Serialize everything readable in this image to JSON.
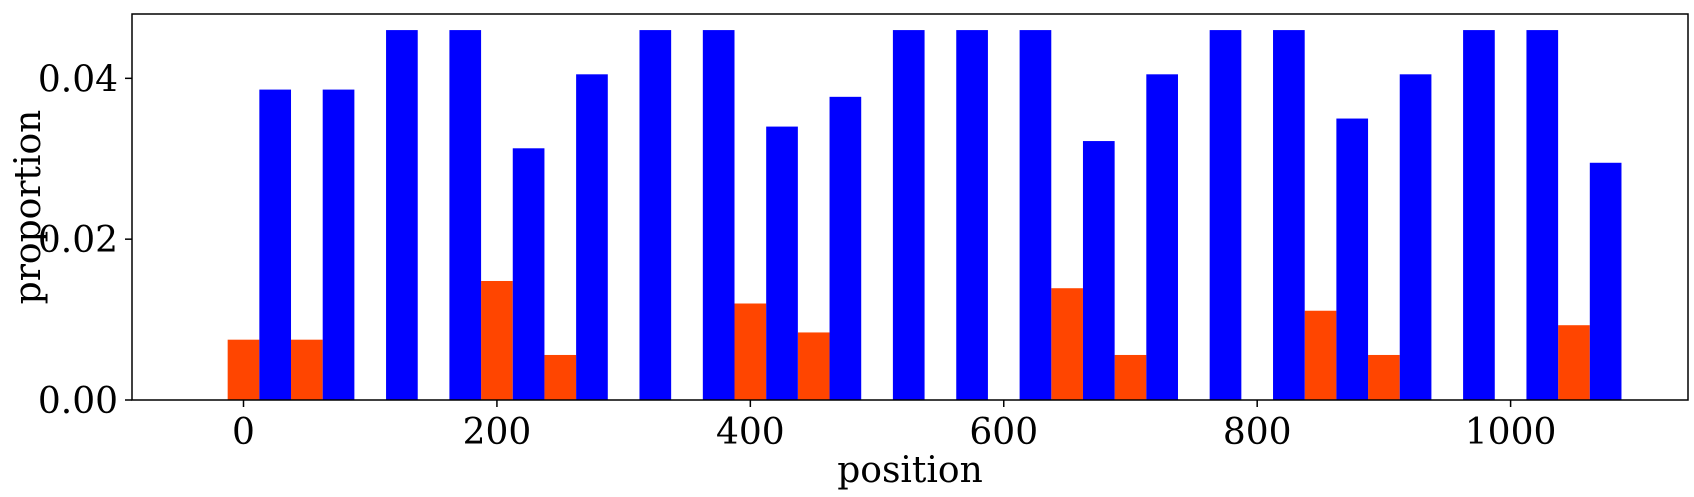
{
  "chart_data": {
    "type": "bar",
    "title": "",
    "xlabel": "position",
    "ylabel": "proportion",
    "xlim": [
      -88,
      1140
    ],
    "ylim": [
      0,
      0.048
    ],
    "xticks": [
      0,
      200,
      400,
      600,
      800,
      1000
    ],
    "xtick_labels": [
      "0",
      "200",
      "400",
      "600",
      "800",
      "1000"
    ],
    "yticks": [
      0.0,
      0.02,
      0.04
    ],
    "ytick_labels": [
      "0.00",
      "0.02",
      "0.04"
    ],
    "bar_width": 25,
    "grid": false,
    "legend": "none",
    "series": [
      {
        "color": "#ff4500",
        "points": [
          {
            "x": 0,
            "y": 0.0075
          },
          {
            "x": 50,
            "y": 0.0075
          },
          {
            "x": 200,
            "y": 0.0148
          },
          {
            "x": 250,
            "y": 0.0056
          },
          {
            "x": 400,
            "y": 0.012
          },
          {
            "x": 450,
            "y": 0.0084
          },
          {
            "x": 650,
            "y": 0.0139
          },
          {
            "x": 700,
            "y": 0.0056
          },
          {
            "x": 850,
            "y": 0.0111
          },
          {
            "x": 900,
            "y": 0.0056
          },
          {
            "x": 1050,
            "y": 0.0093
          }
        ]
      },
      {
        "color": "#0000ff",
        "points": [
          {
            "x": 25,
            "y": 0.0386
          },
          {
            "x": 75,
            "y": 0.0386
          },
          {
            "x": 125,
            "y": 0.046
          },
          {
            "x": 175,
            "y": 0.046
          },
          {
            "x": 225,
            "y": 0.0313
          },
          {
            "x": 275,
            "y": 0.0405
          },
          {
            "x": 325,
            "y": 0.046
          },
          {
            "x": 375,
            "y": 0.046
          },
          {
            "x": 425,
            "y": 0.034
          },
          {
            "x": 475,
            "y": 0.0377
          },
          {
            "x": 525,
            "y": 0.046
          },
          {
            "x": 575,
            "y": 0.046
          },
          {
            "x": 625,
            "y": 0.046
          },
          {
            "x": 675,
            "y": 0.0322
          },
          {
            "x": 725,
            "y": 0.0405
          },
          {
            "x": 775,
            "y": 0.046
          },
          {
            "x": 825,
            "y": 0.046
          },
          {
            "x": 875,
            "y": 0.035
          },
          {
            "x": 925,
            "y": 0.0405
          },
          {
            "x": 975,
            "y": 0.046
          },
          {
            "x": 1025,
            "y": 0.046
          },
          {
            "x": 1075,
            "y": 0.0295
          }
        ]
      }
    ]
  }
}
